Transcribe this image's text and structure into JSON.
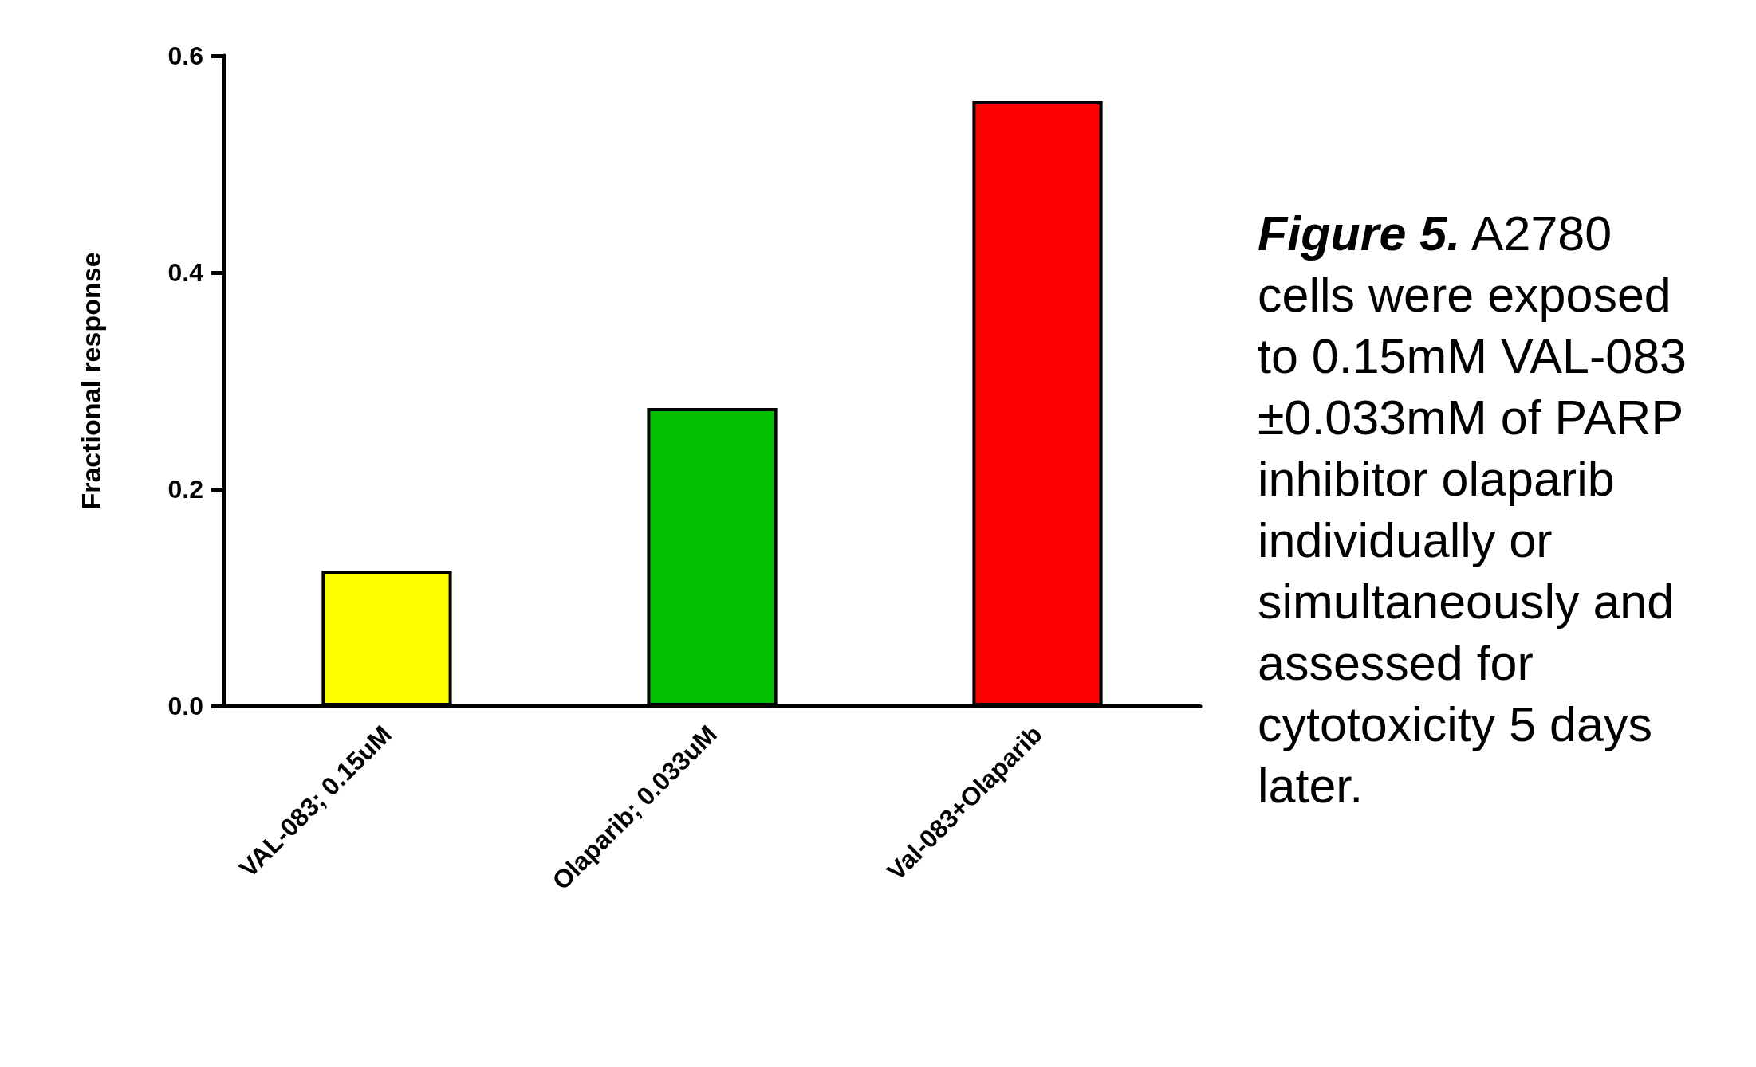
{
  "chart_data": {
    "type": "bar",
    "ylabel": "Fractional response",
    "categories": [
      "VAL-083; 0.15uM",
      "Olaparib; 0.033uM",
      "Val-083+Olaparib"
    ],
    "values": [
      0.125,
      0.275,
      0.558
    ],
    "colors": [
      "#ffff00",
      "#00c000",
      "#ff0000"
    ],
    "ylim": [
      0,
      0.6
    ],
    "yticks": [
      {
        "value": 0,
        "label": "0.0"
      },
      0.2,
      0.4,
      0.6
    ],
    "grid": false,
    "annotations": [
      "Figure 5. A2780 cells were exposed to 0.15mM VAL-083 ±0.033mM of PARP inhibitor olaparib individually or simultaneously and assessed for cytotoxicity 5 days later."
    ]
  }
}
